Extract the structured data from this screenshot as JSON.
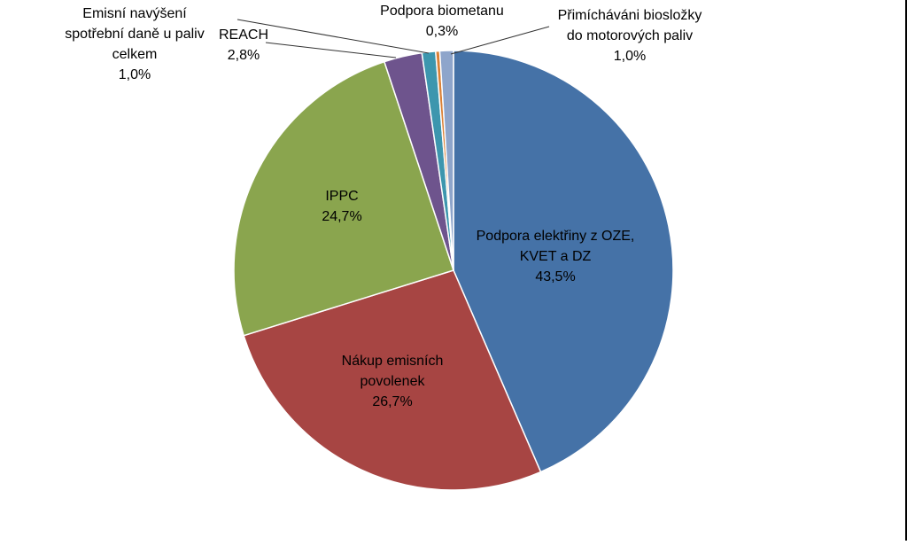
{
  "chart_data": {
    "type": "pie",
    "title": "",
    "start_angle_deg": 0,
    "direction": "clockwise",
    "slices": [
      {
        "label_lines": [
          "Podpora elektřiny z OZE,",
          "KVET a DZ"
        ],
        "value": 43.5,
        "value_label": "43,5%",
        "color": "#4572A7"
      },
      {
        "label_lines": [
          "Nákup emisních",
          "povolenek"
        ],
        "value": 26.7,
        "value_label": "26,7%",
        "color": "#A74543"
      },
      {
        "label_lines": [
          "IPPC"
        ],
        "value": 24.7,
        "value_label": "24,7%",
        "color": "#8AA54E"
      },
      {
        "label_lines": [
          "REACH"
        ],
        "value": 2.8,
        "value_label": "2,8%",
        "color": "#6E548D"
      },
      {
        "label_lines": [
          "Emisní navýšení",
          "spotřební daně u paliv",
          "celkem"
        ],
        "value": 1.0,
        "value_label": "1,0%",
        "color": "#3D96AE"
      },
      {
        "label_lines": [
          "Podpora biometanu"
        ],
        "value": 0.3,
        "value_label": "0,3%",
        "color": "#DA8137"
      },
      {
        "label_lines": [
          "Přimícháváni biosložky",
          "do motorových paliv"
        ],
        "value": 1.0,
        "value_label": "1,0%",
        "color": "#8EA5CB"
      }
    ]
  }
}
